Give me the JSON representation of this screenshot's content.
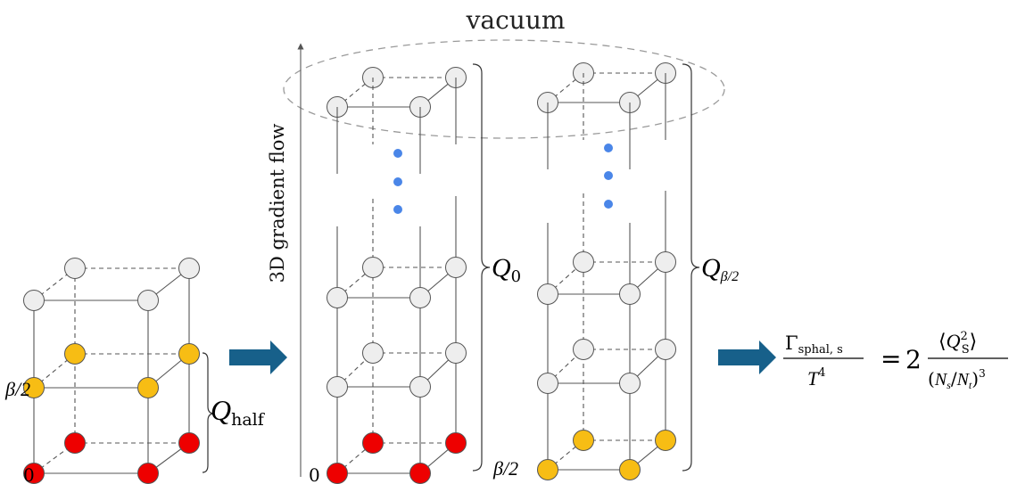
{
  "header": {
    "vacuum_label": "vacuum"
  },
  "axis": {
    "flow_label": "3D gradient flow"
  },
  "lattice_left": {
    "label_zero": "0",
    "label_half": "β/2",
    "brace_symbol": "Q",
    "brace_subscript": "half"
  },
  "lattice_middle": {
    "label_zero": "0",
    "brace_symbol": "Q",
    "brace_subscript": "0"
  },
  "lattice_right": {
    "label_half": "β/2",
    "brace_symbol": "Q",
    "brace_subscript": "β/2"
  },
  "formula": {
    "gamma": "Γ",
    "gamma_sub": "sphal, s",
    "T": "T",
    "T_exp": "4",
    "equals": "=",
    "two": "2",
    "numerator_open": "⟨",
    "numerator_Q": "Q",
    "numerator_sup": "2",
    "numerator_sub": "S",
    "numerator_close": "⟩",
    "denominator_open": "(",
    "Ns": "N",
    "Ns_sub": "s",
    "slash": "/",
    "Nt": "N",
    "Nt_sub": "t",
    "denominator_close": ")",
    "denominator_exp": "3"
  },
  "colors": {
    "red_node": "#ee0000",
    "yellow_node": "#f7bd14",
    "grey_node": "#eeeeee",
    "flow_dots": "#4a86e8",
    "arrow_fill": "#17608a",
    "line": "#555555",
    "ellipse": "#9a9a9a"
  }
}
